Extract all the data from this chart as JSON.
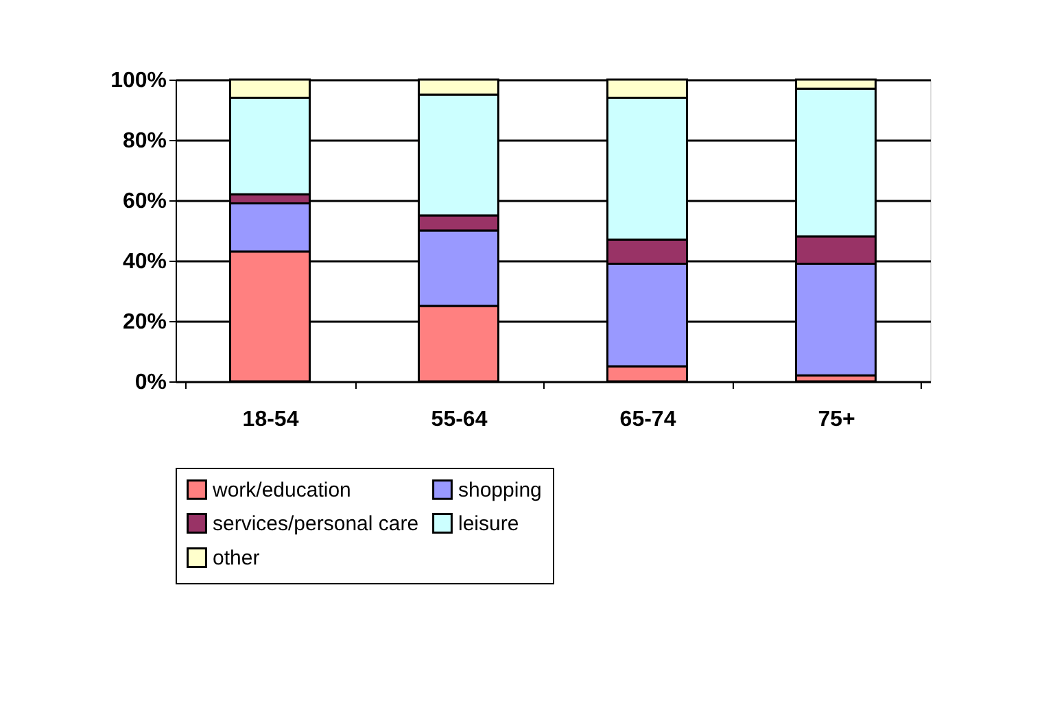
{
  "chart_data": {
    "type": "bar",
    "stacked": true,
    "categories": [
      "18-54",
      "55-64",
      "65-74",
      "75+"
    ],
    "series": [
      {
        "name": "work/education",
        "color": "#ff8080",
        "values": [
          43,
          25,
          5,
          2
        ]
      },
      {
        "name": "shopping",
        "color": "#9999ff",
        "values": [
          16,
          25,
          34,
          37
        ]
      },
      {
        "name": "services/personal care",
        "color": "#993366",
        "values": [
          3,
          5,
          8,
          9
        ]
      },
      {
        "name": "leisure",
        "color": "#ccffff",
        "values": [
          32,
          40,
          47,
          49
        ]
      },
      {
        "name": "other",
        "color": "#ffffcc",
        "values": [
          6,
          5,
          6,
          3
        ]
      }
    ],
    "ylim": [
      0,
      100
    ],
    "yticks": [
      {
        "value": 0,
        "label": "0%"
      },
      {
        "value": 20,
        "label": "20%"
      },
      {
        "value": 40,
        "label": "40%"
      },
      {
        "value": 60,
        "label": "60%"
      },
      {
        "value": 80,
        "label": "80%"
      },
      {
        "value": 100,
        "label": "100%"
      }
    ],
    "grid": "y",
    "legend": "bottom"
  }
}
